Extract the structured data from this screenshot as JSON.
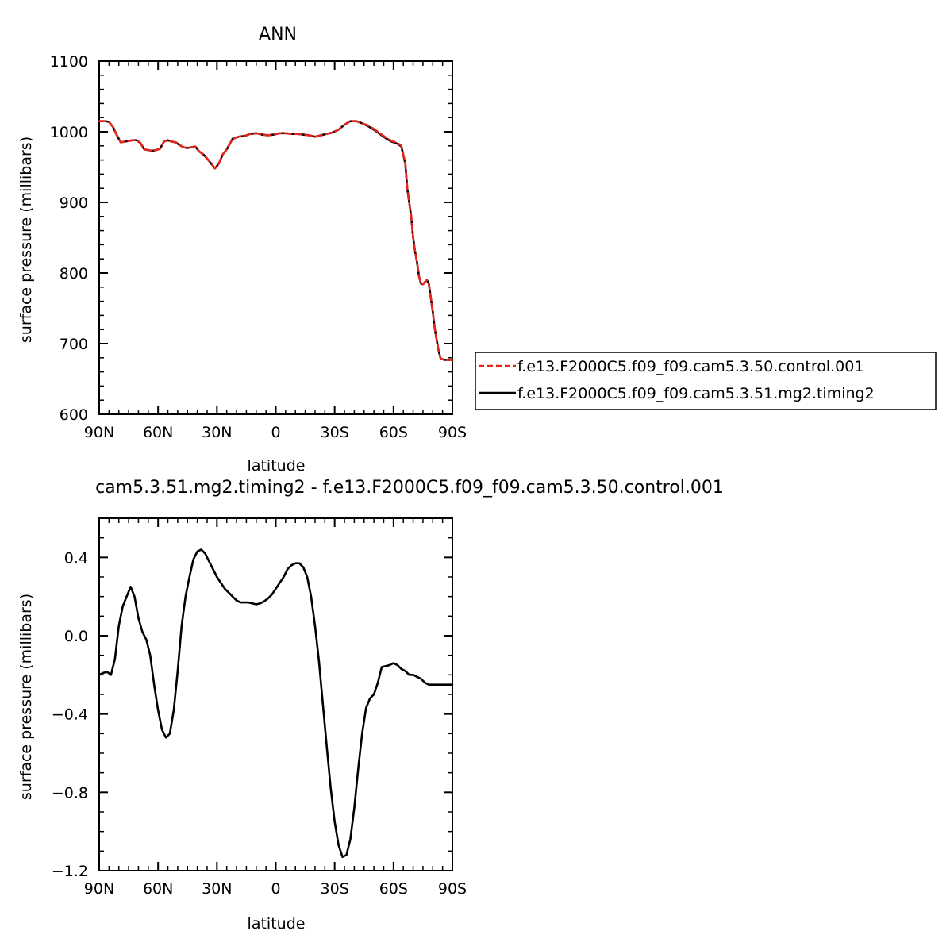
{
  "colors": {
    "control": "#e8241c",
    "test": "#000000",
    "axes": "#000000"
  },
  "chart_data": [
    {
      "type": "line",
      "title": "ANN",
      "xlabel": "latitude",
      "ylabel": "surface pressure (millibars)",
      "xlim": [
        90,
        -90
      ],
      "ylim": [
        600,
        1100
      ],
      "xticks": [
        90,
        60,
        30,
        0,
        -30,
        -60,
        -90
      ],
      "xtick_labels": [
        "90N",
        "60N",
        "30N",
        "0",
        "30S",
        "60S",
        "90S"
      ],
      "yticks": [
        600,
        700,
        800,
        900,
        1000,
        1100
      ],
      "ytick_labels": [
        "600",
        "700",
        "800",
        "900",
        "1000",
        "1100"
      ],
      "legend": "right of plot",
      "series": [
        {
          "name": "f.e13.F2000C5.f09_f09.cam5.3.50.control.001",
          "style": "dashed",
          "color": "#e8241c",
          "x": [
            90,
            87,
            85,
            83,
            81,
            79,
            77,
            75,
            73,
            71,
            69,
            67,
            65,
            63,
            61,
            59,
            57,
            55,
            53,
            51,
            49,
            47,
            45,
            43,
            41,
            39,
            37,
            35,
            33,
            31,
            29,
            27,
            25,
            22,
            19,
            16,
            13,
            10,
            7,
            4,
            1,
            -2,
            -5,
            -8,
            -11,
            -14,
            -17,
            -20,
            -23,
            -26,
            -29,
            -32,
            -35,
            -38,
            -41,
            -44,
            -47,
            -50,
            -53,
            -56,
            -59,
            -62,
            -64,
            -66,
            -67,
            -68,
            -69,
            -70,
            -71,
            -72,
            -73,
            -74,
            -75,
            -76,
            -77,
            -78,
            -79,
            -80,
            -81,
            -82,
            -83,
            -84,
            -85,
            -86,
            -87,
            -88,
            -89,
            -90
          ],
          "y": [
            1015,
            1015,
            1014,
            1007,
            995,
            985,
            986,
            987,
            988,
            988,
            984,
            975,
            974,
            973,
            974,
            976,
            986,
            988,
            986,
            985,
            981,
            978,
            977,
            978,
            979,
            972,
            968,
            962,
            955,
            948,
            955,
            968,
            975,
            990,
            993,
            994,
            997,
            998,
            996,
            995,
            996,
            998,
            998,
            997,
            997,
            996,
            995,
            993,
            995,
            997,
            999,
            1003,
            1010,
            1015,
            1015,
            1012,
            1009,
            1004,
            998,
            992,
            987,
            984,
            980,
            955,
            920,
            900,
            880,
            850,
            830,
            815,
            795,
            785,
            784,
            787,
            790,
            785,
            765,
            745,
            722,
            705,
            690,
            679,
            678,
            677,
            677,
            677,
            677,
            677
          ]
        },
        {
          "name": "f.e13.F2000C5.f09_f09.cam5.3.51.mg2.timing2",
          "style": "solid",
          "color": "#000000",
          "x": [
            90,
            87,
            85,
            83,
            81,
            79,
            77,
            75,
            73,
            71,
            69,
            67,
            65,
            63,
            61,
            59,
            57,
            55,
            53,
            51,
            49,
            47,
            45,
            43,
            41,
            39,
            37,
            35,
            33,
            31,
            29,
            27,
            25,
            22,
            19,
            16,
            13,
            10,
            7,
            4,
            1,
            -2,
            -5,
            -8,
            -11,
            -14,
            -17,
            -20,
            -23,
            -26,
            -29,
            -32,
            -35,
            -38,
            -41,
            -44,
            -47,
            -50,
            -53,
            -56,
            -59,
            -62,
            -64,
            -66,
            -67,
            -68,
            -69,
            -70,
            -71,
            -72,
            -73,
            -74,
            -75,
            -76,
            -77,
            -78,
            -79,
            -80,
            -81,
            -82,
            -83,
            -84,
            -85,
            -86,
            -87,
            -88,
            -89,
            -90
          ],
          "y": [
            1015,
            1015,
            1014,
            1007,
            995,
            985,
            986,
            987,
            988,
            988,
            984,
            975,
            974,
            973,
            974,
            976,
            986,
            988,
            986,
            985,
            981,
            978,
            977,
            978,
            979,
            972,
            968,
            962,
            955,
            948,
            955,
            968,
            975,
            990,
            993,
            994,
            997,
            998,
            996,
            995,
            996,
            998,
            998,
            997,
            997,
            996,
            995,
            993,
            995,
            997,
            999,
            1003,
            1010,
            1015,
            1015,
            1012,
            1008,
            1003,
            997,
            991,
            986,
            983,
            979,
            955,
            920,
            900,
            880,
            850,
            830,
            815,
            795,
            785,
            784,
            787,
            790,
            785,
            765,
            745,
            722,
            705,
            690,
            679,
            678,
            677,
            677,
            677,
            677,
            677
          ]
        }
      ]
    },
    {
      "type": "line",
      "title": "cam5.3.51.mg2.timing2 - f.e13.F2000C5.f09_f09.cam5.3.50.control.001",
      "xlabel": "latitude",
      "ylabel": "surface pressure (millibars)",
      "xlim": [
        90,
        -90
      ],
      "ylim": [
        -1.2,
        0.6
      ],
      "xticks": [
        90,
        60,
        30,
        0,
        -30,
        -60,
        -90
      ],
      "xtick_labels": [
        "90N",
        "60N",
        "30N",
        "0",
        "30S",
        "60S",
        "90S"
      ],
      "yticks": [
        -1.2,
        -0.8,
        -0.4,
        0.0,
        0.4
      ],
      "ytick_labels": [
        "−1.2",
        "−0.8",
        "−0.4",
        "0.0",
        "0.4"
      ],
      "series": [
        {
          "style": "solid",
          "color": "#000000",
          "x": [
            90,
            88,
            86,
            84,
            82,
            80,
            78,
            76,
            74,
            72,
            70,
            68,
            66,
            64,
            62,
            60,
            58,
            56,
            54,
            52,
            50,
            48,
            46,
            44,
            42,
            40,
            38,
            36,
            34,
            32,
            30,
            28,
            26,
            24,
            22,
            20,
            18,
            16,
            14,
            12,
            10,
            8,
            6,
            4,
            2,
            0,
            -2,
            -4,
            -6,
            -8,
            -10,
            -12,
            -14,
            -16,
            -18,
            -20,
            -22,
            -24,
            -26,
            -28,
            -30,
            -32,
            -34,
            -36,
            -38,
            -40,
            -42,
            -44,
            -46,
            -48,
            -50,
            -52,
            -54,
            -56,
            -58,
            -60,
            -62,
            -64,
            -66,
            -68,
            -70,
            -72,
            -74,
            -76,
            -78,
            -80,
            -82,
            -84,
            -86,
            -88,
            -90
          ],
          "y": [
            -0.2,
            -0.19,
            -0.185,
            -0.2,
            -0.12,
            0.05,
            0.15,
            0.2,
            0.25,
            0.2,
            0.09,
            0.02,
            -0.02,
            -0.1,
            -0.25,
            -0.38,
            -0.48,
            -0.52,
            -0.5,
            -0.38,
            -0.18,
            0.05,
            0.2,
            0.3,
            0.39,
            0.43,
            0.44,
            0.42,
            0.38,
            0.34,
            0.3,
            0.27,
            0.24,
            0.22,
            0.2,
            0.18,
            0.17,
            0.17,
            0.17,
            0.165,
            0.16,
            0.165,
            0.175,
            0.19,
            0.21,
            0.24,
            0.27,
            0.3,
            0.34,
            0.36,
            0.37,
            0.37,
            0.35,
            0.3,
            0.2,
            0.05,
            -0.13,
            -0.35,
            -0.57,
            -0.78,
            -0.95,
            -1.07,
            -1.13,
            -1.12,
            -1.04,
            -0.88,
            -0.68,
            -0.5,
            -0.37,
            -0.32,
            -0.3,
            -0.24,
            -0.16,
            -0.155,
            -0.15,
            -0.14,
            -0.15,
            -0.17,
            -0.18,
            -0.2,
            -0.2,
            -0.21,
            -0.22,
            -0.24,
            -0.25,
            -0.25,
            -0.25,
            -0.25,
            -0.25,
            -0.25,
            -0.25
          ]
        }
      ]
    }
  ]
}
